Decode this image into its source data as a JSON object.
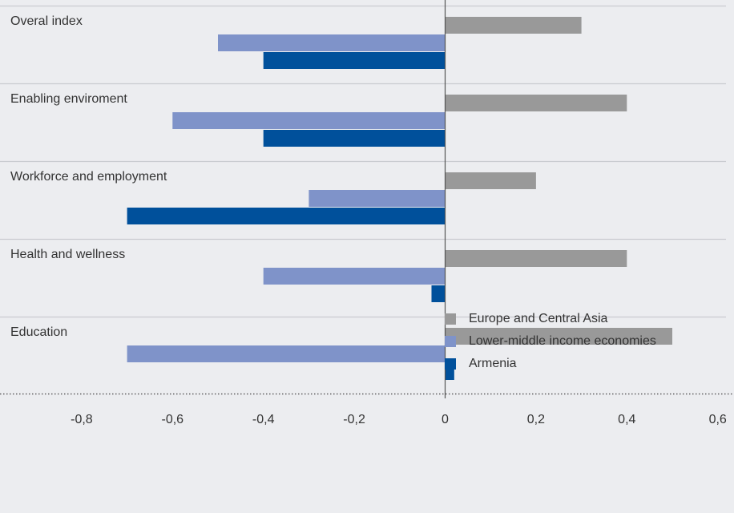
{
  "chart_data": {
    "type": "bar",
    "orientation": "horizontal",
    "categories": [
      "Overal index",
      "Enabling enviroment",
      "Workforce and employment",
      "Health and wellness",
      "Education"
    ],
    "series": [
      {
        "name": "Europe and Central Asia",
        "color": "#999999",
        "values": [
          0.3,
          0.4,
          0.2,
          0.4,
          0.5
        ]
      },
      {
        "name": "Lower-middle income economies",
        "color": "#7f93c9",
        "values": [
          -0.5,
          -0.6,
          -0.3,
          -0.4,
          -0.7
        ]
      },
      {
        "name": "Armenia",
        "color": "#00509b",
        "values": [
          -0.4,
          -0.4,
          -0.7,
          -0.03,
          0.02
        ]
      }
    ],
    "xticks": [
      "-0,8",
      "-0,6",
      "-0,4",
      "-0,2",
      "0",
      "0,2",
      "0,4",
      "0,6"
    ],
    "xtick_values": [
      -0.8,
      -0.6,
      -0.4,
      -0.2,
      0,
      0.2,
      0.4,
      0.6
    ],
    "xlim": [
      -0.98,
      0.63
    ],
    "title": "",
    "xlabel": "",
    "ylabel": "",
    "legend_position": "bottom-right"
  }
}
